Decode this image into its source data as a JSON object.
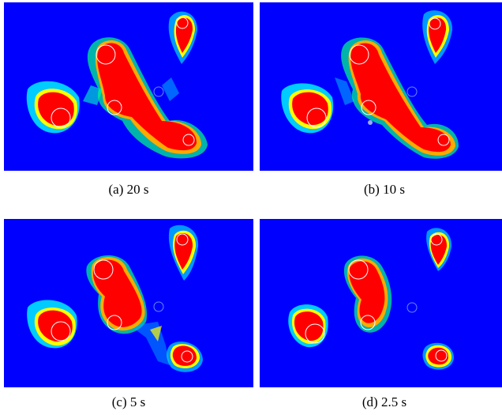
{
  "colors": {
    "background": "#0000ff",
    "high": "#ff0000",
    "mid_orange": "#ff8000",
    "mid_yellow": "#ffff00",
    "mid_green": "#00ff66",
    "low_cyan": "#00c8ff",
    "marker": "#ffffff"
  },
  "panels": [
    {
      "id": "a",
      "caption": "(a)  20 s"
    },
    {
      "id": "b",
      "caption": "(b)  10 s"
    },
    {
      "id": "c",
      "caption": "(c)  5 s"
    },
    {
      "id": "d",
      "caption": "(d)  2.5 s"
    }
  ]
}
